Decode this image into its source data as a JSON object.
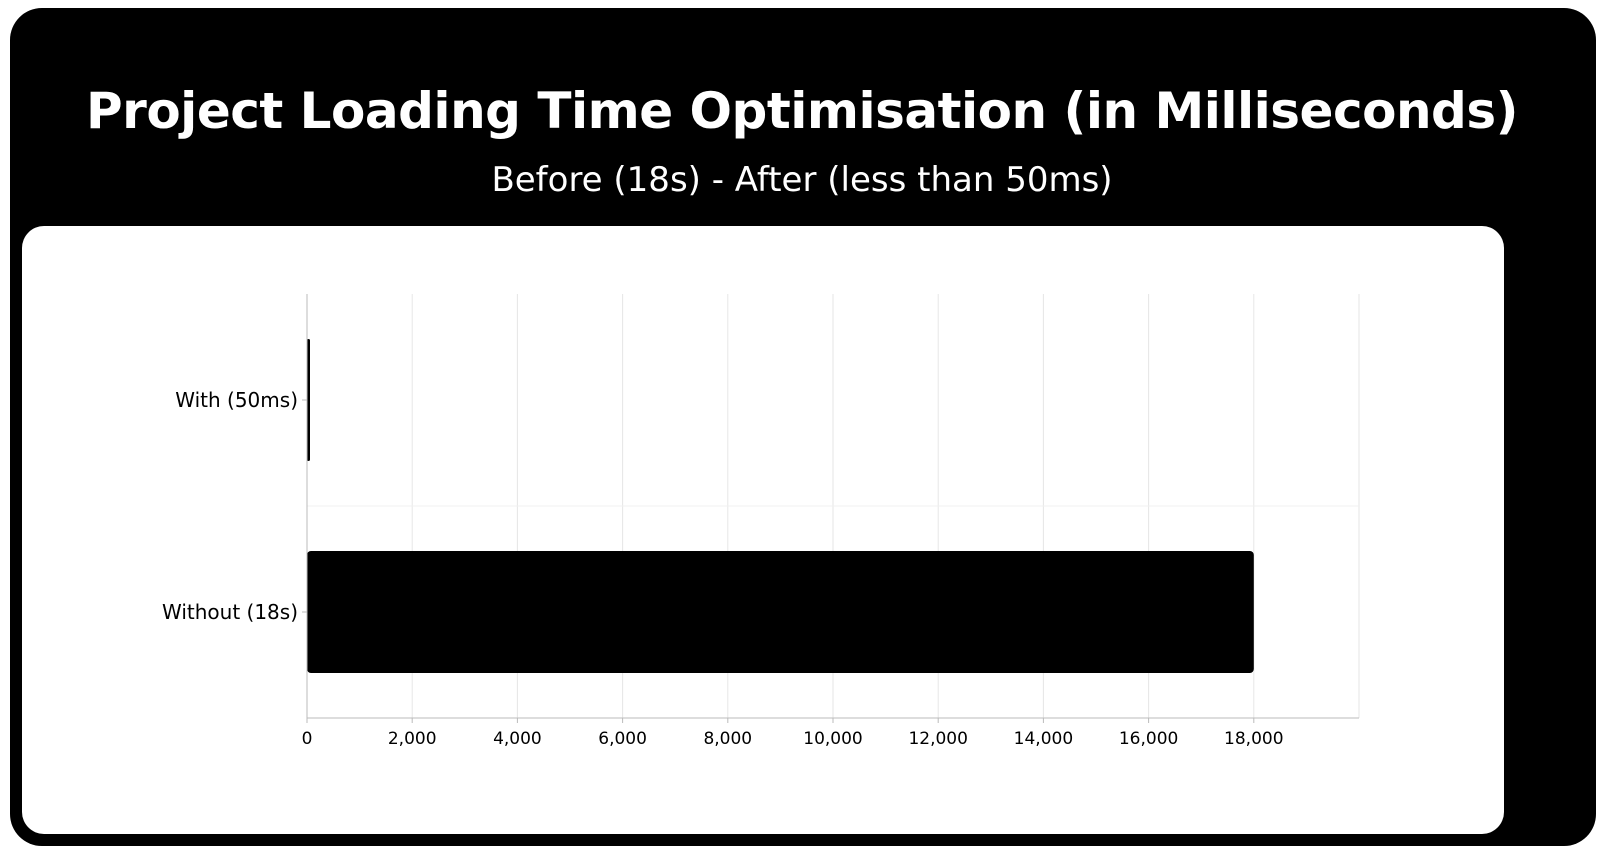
{
  "header": {
    "title": "Project Loading Time Optimisation (in Milliseconds)",
    "subtitle": "Before (18s) - After (less than 50ms)"
  },
  "colors": {
    "frame": "#000000",
    "panel": "#ffffff",
    "bar": "#000000",
    "grid": "#e6e6e6",
    "text": "#000000"
  },
  "chart_data": {
    "type": "bar",
    "orientation": "horizontal",
    "categories": [
      "With (50ms)",
      "Without (18s)"
    ],
    "values": [
      50,
      18000
    ],
    "xlim": [
      0,
      20000
    ],
    "xticks": [
      0,
      2000,
      4000,
      6000,
      8000,
      10000,
      12000,
      14000,
      16000,
      18000
    ],
    "xtick_labels": [
      "0",
      "2,000",
      "4,000",
      "6,000",
      "8,000",
      "10,000",
      "12,000",
      "14,000",
      "16,000",
      "18,000"
    ],
    "xlabel": "",
    "ylabel": "",
    "grid": true,
    "legend": "none"
  }
}
